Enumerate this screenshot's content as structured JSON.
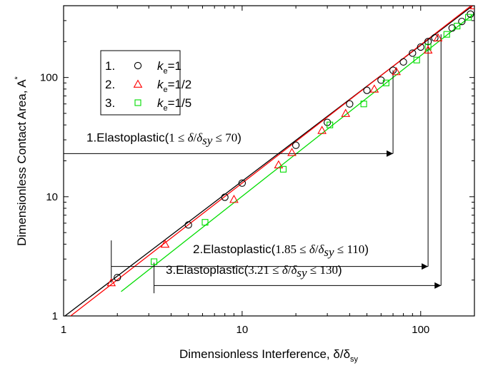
{
  "chart_data": {
    "type": "scatter",
    "xscale": "log",
    "yscale": "log",
    "xlim": [
      1,
      200
    ],
    "ylim": [
      1,
      400
    ],
    "xlabel": "Dimensionless Interference, δ/δ",
    "xlabel_sub": "sy",
    "ylabel": "Dimensionless Contact Area, A",
    "ylabel_sup": "*",
    "x_ticks": [
      {
        "value": 1,
        "label": "1"
      },
      {
        "value": 10,
        "label": "10"
      },
      {
        "value": 100,
        "label": "100"
      }
    ],
    "y_ticks": [
      {
        "value": 1,
        "label": "1"
      },
      {
        "value": 10,
        "label": "10"
      },
      {
        "value": 100,
        "label": "100"
      }
    ],
    "grid": false,
    "legend_position": "top-left",
    "legend": [
      {
        "index": "1.",
        "k": "k",
        "sub": "e",
        "value": "=1",
        "marker": "circle",
        "color": "#000000"
      },
      {
        "index": "2.",
        "k": "k",
        "sub": "e",
        "value": "=1/2",
        "marker": "triangle",
        "color": "#ff0000"
      },
      {
        "index": "3.",
        "k": "k",
        "sub": "e",
        "value": "=1/5",
        "marker": "square",
        "color": "#00dd00"
      }
    ],
    "series": [
      {
        "marker": "circle",
        "color": "#000000",
        "fit_x": [
          1,
          200
        ],
        "fit_y": [
          0.98,
          410
        ],
        "points": [
          [
            2,
            2.1
          ],
          [
            5,
            5.8
          ],
          [
            8,
            9.9
          ],
          [
            10,
            13
          ],
          [
            20,
            27
          ],
          [
            30,
            42
          ],
          [
            40,
            60
          ],
          [
            50,
            78
          ],
          [
            60,
            95
          ],
          [
            70,
            115
          ],
          [
            80,
            135
          ],
          [
            90,
            160
          ],
          [
            100,
            180
          ],
          [
            110,
            200
          ],
          [
            120,
            215
          ],
          [
            150,
            260
          ],
          [
            170,
            295
          ],
          [
            190,
            340
          ]
        ]
      },
      {
        "marker": "triangle",
        "color": "#ff0000",
        "fit_x": [
          1,
          200
        ],
        "fit_y": [
          0.9,
          420
        ],
        "points": [
          [
            1.85,
            1.9
          ],
          [
            3.7,
            4.0
          ],
          [
            9,
            9.5
          ],
          [
            16,
            18.5
          ],
          [
            19,
            23.5
          ],
          [
            28,
            36
          ],
          [
            38,
            50
          ],
          [
            55,
            80
          ],
          [
            73,
            112
          ],
          [
            110,
            170
          ],
          [
            125,
            215
          ],
          [
            200,
            400
          ]
        ]
      },
      {
        "marker": "square",
        "color": "#00dd00",
        "fit_x": [
          2.1,
          200
        ],
        "fit_y": [
          1.6,
          345
        ],
        "points": [
          [
            3.21,
            2.85
          ],
          [
            6.2,
            6.1
          ],
          [
            17,
            17
          ],
          [
            31,
            40
          ],
          [
            48,
            60
          ],
          [
            64,
            90
          ],
          [
            95,
            140
          ],
          [
            110,
            180
          ],
          [
            140,
            230
          ],
          [
            160,
            270
          ],
          [
            185,
            320
          ]
        ]
      }
    ],
    "annotations": [
      {
        "label": "1.Elastoplastic(",
        "min": "1",
        "max": "70",
        "x_from": 1,
        "x_to": 70,
        "arrow_y": 23,
        "text_y": 29,
        "drop_x": 70,
        "drop_top": 115,
        "drop_bottom": 23
      },
      {
        "label": "2.Elastoplastic(",
        "min": "1.85",
        "max": "110",
        "x_from": 1.85,
        "x_to": 110,
        "arrow_y": 2.6,
        "text_y": 3.35,
        "rise_x": 1.85,
        "rise_top": 4.3,
        "rise_bottom": 1.9,
        "drop_x": 110,
        "drop_top": 210,
        "drop_bottom": 2.6
      },
      {
        "label": "3.Elastoplastic(",
        "min": "3.21",
        "max": "130",
        "x_from": 3.21,
        "x_to": 130,
        "arrow_y": 1.8,
        "text_y": 2.25,
        "rise_x": 3.21,
        "rise_top": 2.8,
        "rise_bottom": 1.55,
        "drop_x": 130,
        "drop_top": 230,
        "drop_bottom": 1.8
      }
    ],
    "ann_delta": "δ",
    "ann_slash": "/",
    "ann_sub": "sy",
    "ann_le": "≤",
    "ann_close": ")"
  }
}
